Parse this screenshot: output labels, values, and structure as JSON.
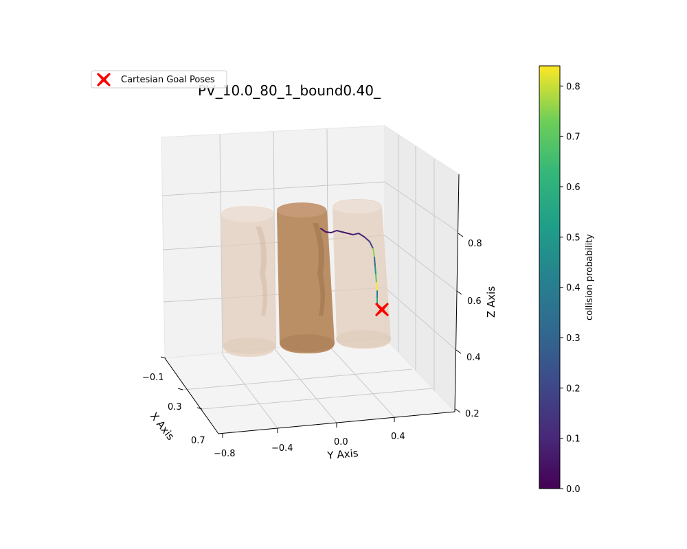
{
  "chart_data": {
    "type": "scatter",
    "title": "PV_10.0_80_1_bound0.40_",
    "legend": {
      "placement": "top-left",
      "entries": [
        "Cartesian Goal Poses"
      ]
    },
    "xlabel": "X Axis",
    "ylabel": "Y Axis",
    "zlabel": "Z Axis",
    "x_ticks": [
      "−0.1",
      "0.3",
      "0.7"
    ],
    "y_ticks": [
      "−0.8",
      "−0.4",
      "0.0",
      "0.4"
    ],
    "z_ticks": [
      "0.2",
      "0.4",
      "0.6",
      "0.8"
    ],
    "grid": true,
    "colorbar": {
      "label": "collision probability",
      "colormap": "viridis",
      "range": [
        0.0,
        0.84
      ],
      "ticks": [
        "0.0",
        "0.1",
        "0.2",
        "0.3",
        "0.4",
        "0.5",
        "0.6",
        "0.7",
        "0.8"
      ]
    },
    "obstacles": [
      {
        "shape": "cylinder",
        "color": "#e8d3c3",
        "opacity": 0.7
      },
      {
        "shape": "cylinder",
        "color": "#b98a5e",
        "opacity": 0.95
      },
      {
        "shape": "cylinder",
        "color": "#e8d3c3",
        "opacity": 0.7
      }
    ],
    "trajectory": {
      "name": "trajectory",
      "collision_probability": [
        0.05,
        0.05,
        0.06,
        0.08,
        0.05,
        0.06,
        0.1,
        0.08,
        0.12,
        0.2,
        0.75,
        0.3,
        0.5,
        0.7,
        0.84,
        0.4,
        0.55,
        0.3,
        0.2
      ]
    },
    "goal_markers": [
      {
        "marker": "X",
        "color": "#ff0000"
      }
    ]
  }
}
